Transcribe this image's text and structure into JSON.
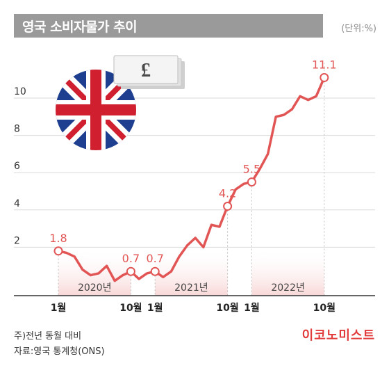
{
  "title": "영국 소비자물가 추이",
  "unit": "(단위:%)",
  "footnote_1": "주)전년 동월 대비",
  "footnote_2": "자료:영국 통계청(ONS)",
  "logo_text": "이코노미스트",
  "currency_card_symbol": "£",
  "colors": {
    "line": "#e25555",
    "label": "#e25555",
    "band": "#fbe6e6",
    "grid": "#d9d9d9",
    "axis": "#333333"
  },
  "chart_data": {
    "type": "line",
    "title": "영국 소비자물가 추이",
    "xlabel": "",
    "ylabel": "",
    "ylim": [
      -1.2,
      12
    ],
    "y_ticks": [
      2,
      4,
      6,
      8,
      10
    ],
    "x_tick_labels": [
      {
        "index": 0,
        "label": "1월"
      },
      {
        "index": 9,
        "label": "10월"
      },
      {
        "index": 12,
        "label": "1월"
      },
      {
        "index": 21,
        "label": "10월"
      },
      {
        "index": 24,
        "label": "1월"
      },
      {
        "index": 33,
        "label": "10월"
      }
    ],
    "year_bands": [
      {
        "label": "2020년",
        "start": 0,
        "end": 9
      },
      {
        "label": "2021년",
        "start": 12,
        "end": 21
      },
      {
        "label": "2022년",
        "start": 24,
        "end": 33
      }
    ],
    "x": [
      "2020-01",
      "2020-02",
      "2020-03",
      "2020-04",
      "2020-05",
      "2020-06",
      "2020-07",
      "2020-08",
      "2020-09",
      "2020-10",
      "2020-11",
      "2020-12",
      "2021-01",
      "2021-02",
      "2021-03",
      "2021-04",
      "2021-05",
      "2021-06",
      "2021-07",
      "2021-08",
      "2021-09",
      "2021-10",
      "2021-11",
      "2021-12",
      "2022-01",
      "2022-02",
      "2022-03",
      "2022-04",
      "2022-05",
      "2022-06",
      "2022-07",
      "2022-08",
      "2022-09",
      "2022-10"
    ],
    "values": [
      1.8,
      1.7,
      1.5,
      0.8,
      0.5,
      0.6,
      1.0,
      0.2,
      0.5,
      0.7,
      0.3,
      0.6,
      0.7,
      0.4,
      0.7,
      1.5,
      2.1,
      2.5,
      2.0,
      3.2,
      3.1,
      4.2,
      5.1,
      5.4,
      5.5,
      6.2,
      7.0,
      9.0,
      9.1,
      9.4,
      10.1,
      9.9,
      10.1,
      11.1
    ],
    "labeled_points": [
      {
        "index": 0,
        "label": "1.8"
      },
      {
        "index": 9,
        "label": "0.7"
      },
      {
        "index": 12,
        "label": "0.7"
      },
      {
        "index": 21,
        "label": "4.2"
      },
      {
        "index": 24,
        "label": "5.5"
      },
      {
        "index": 33,
        "label": "11.1"
      }
    ]
  }
}
